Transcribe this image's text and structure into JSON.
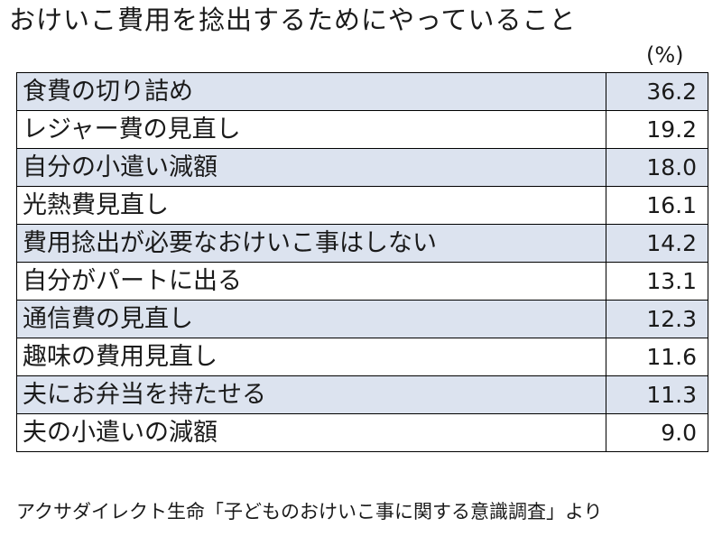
{
  "title": "おけいこ費用を捻出するためにやっていること",
  "unit": "(%)",
  "chart_data": {
    "type": "table",
    "title": "おけいこ費用を捻出するためにやっていること",
    "unit": "(%)",
    "rows": [
      {
        "label": "食費の切り詰め",
        "value": "36.2"
      },
      {
        "label": "レジャー費の見直し",
        "value": "19.2"
      },
      {
        "label": "自分の小遣い減額",
        "value": "18.0"
      },
      {
        "label": "光熱費見直し",
        "value": "16.1"
      },
      {
        "label": "費用捻出が必要なおけいこ事はしない",
        "value": "14.2"
      },
      {
        "label": "自分がパートに出る",
        "value": "13.1"
      },
      {
        "label": "通信費の見直し",
        "value": "12.3"
      },
      {
        "label": "趣味の費用見直し",
        "value": "11.6"
      },
      {
        "label": "夫にお弁当を持たせる",
        "value": "11.3"
      },
      {
        "label": "夫の小遣いの減額",
        "value": "9.0"
      }
    ],
    "source": "アクサダイレクト生命「子どものおけいこ事に関する意識調査」より"
  },
  "colors": {
    "shaded_row": "#dce3ef",
    "border": "#000000",
    "text": "#1a1a1a"
  }
}
